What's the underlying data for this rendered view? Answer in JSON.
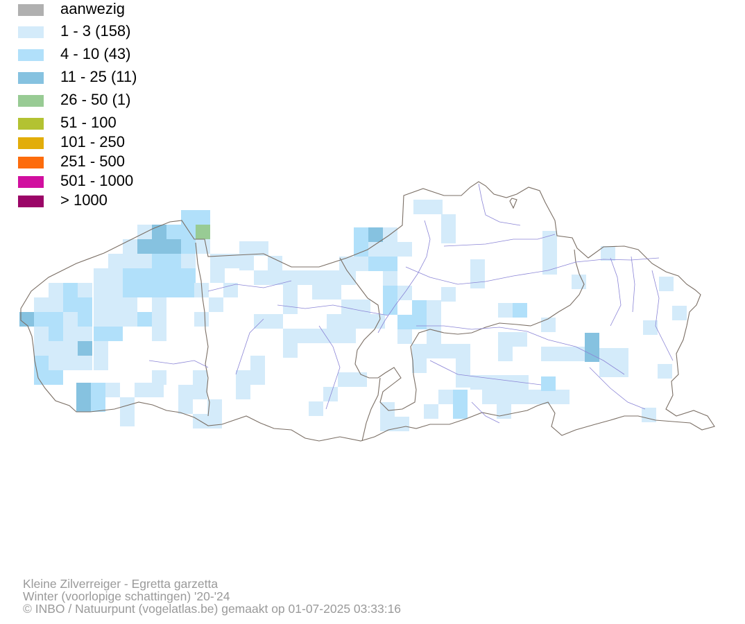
{
  "legend": {
    "items": [
      {
        "label": "aanwezig",
        "color": "#b0b0b0"
      },
      {
        "label": "1 - 3 (158)",
        "color": "#d4ebfa"
      },
      {
        "label": "4 - 10 (43)",
        "color": "#b1e0fa"
      },
      {
        "label": "11 - 25 (11)",
        "color": "#86c2e0"
      },
      {
        "label": "26 - 50 (1)",
        "color": "#98cb94"
      },
      {
        "label": "51 - 100",
        "color": "#b3c232"
      },
      {
        "label": "101 - 250",
        "color": "#e2ad0a"
      },
      {
        "label": "251 - 500",
        "color": "#fd6c0c"
      },
      {
        "label": "501 - 1000",
        "color": "#d10f9f"
      },
      {
        "label": "> 1000",
        "color": "#9b0567"
      }
    ]
  },
  "map": {
    "outline_color": "#7a6e64",
    "river_color": "#8a84d6"
  },
  "footer": {
    "line1": "Kleine Zilverreiger - Egretta garzetta",
    "line2": "Winter (voorlopige schattingen) '20-'24",
    "line3": "© INBO / Natuurpunt (vogelatlas.be) gemaakt op 01-07-2025 03:33:16"
  }
}
